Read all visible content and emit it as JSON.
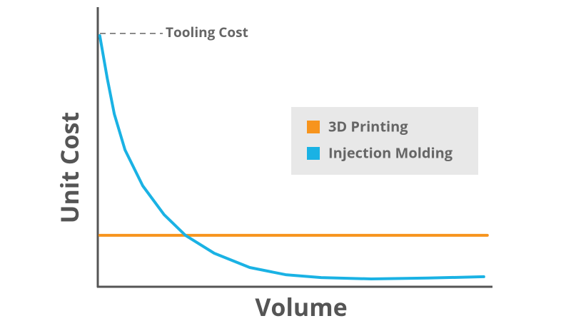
{
  "chart_data": {
    "type": "line",
    "xlabel": "Volume",
    "ylabel": "Unit Cost",
    "xlim": [
      0,
      100
    ],
    "ylim": [
      0,
      100
    ],
    "legend": "upper right",
    "annotations": [
      {
        "text": "Tooling Cost",
        "y": 90.6
      }
    ],
    "series": [
      {
        "name": "3D Printing",
        "color": "#f7941d",
        "x": [
          0.5,
          98.7
        ],
        "values": [
          18.4,
          18.4
        ]
      },
      {
        "name": "Injection Molding",
        "color": "#1ab2e4",
        "x": [
          0.5,
          2.4,
          4.2,
          6.9,
          11.4,
          16.8,
          22.2,
          29.5,
          38.5,
          47.6,
          56.6,
          69.3,
          83.7,
          97.8
        ],
        "values": [
          89.8,
          74.5,
          61.7,
          48.9,
          36.1,
          25.8,
          18.4,
          12.0,
          6.9,
          4.3,
          3.3,
          2.8,
          3.1,
          3.6
        ]
      }
    ]
  }
}
